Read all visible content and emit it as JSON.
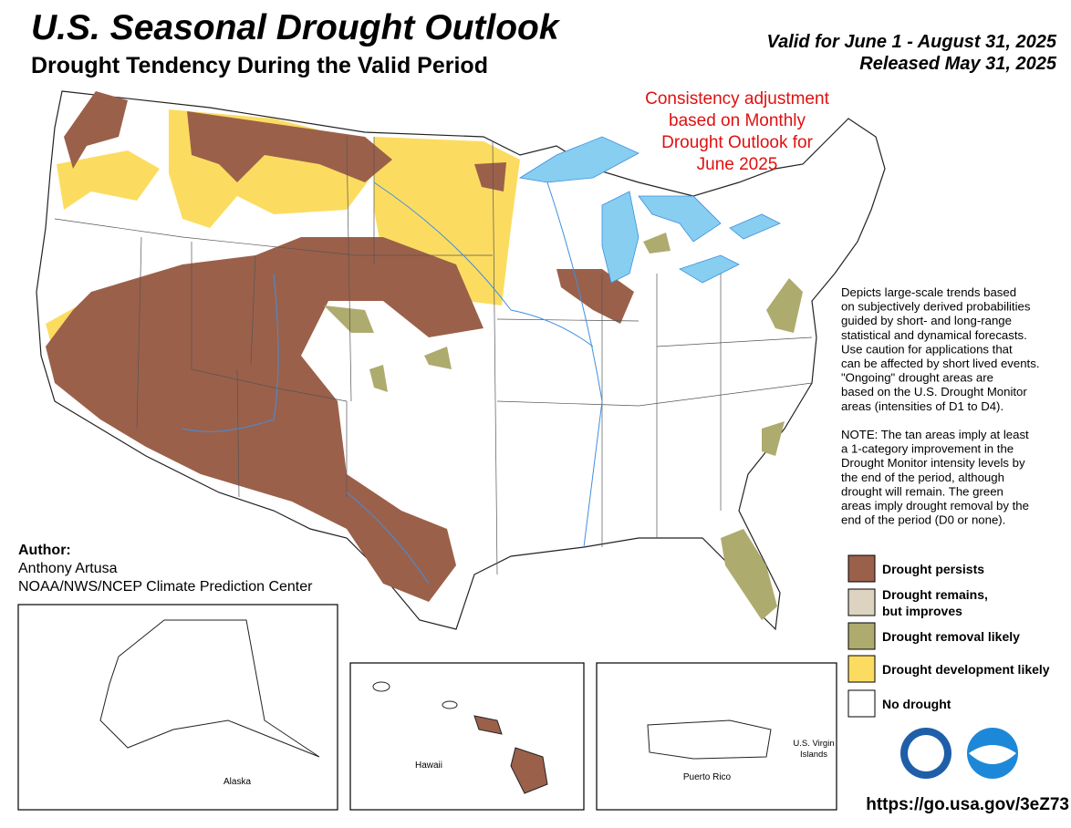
{
  "header": {
    "title": "U.S. Seasonal Drought Outlook",
    "subtitle": "Drought Tendency During the Valid Period",
    "valid": "Valid for June 1 - August 31, 2025",
    "released": "Released May 31, 2025"
  },
  "note": [
    "Consistency adjustment",
    "based on Monthly",
    "Drought Outlook for",
    "June 2025"
  ],
  "description": [
    [
      "Depicts large-scale trends based",
      "on subjectively derived probabilities",
      "guided by short- and long-range",
      "statistical and dynamical forecasts.",
      "Use caution for applications that",
      "can be affected by short lived events.",
      "\"Ongoing\" drought areas are",
      "based on the U.S. Drought Monitor",
      "areas (intensities of D1 to D4)."
    ],
    [
      "NOTE: The tan areas imply at least",
      "a 1-category improvement in the",
      "Drought Monitor intensity levels by",
      "the end of the period, although",
      "drought will remain. The green",
      "areas imply drought removal by the",
      "end of the period (D0 or none)."
    ]
  ],
  "legend": [
    {
      "label": [
        "Drought persists"
      ],
      "color": "#9b604a"
    },
    {
      "label": [
        "Drought remains,",
        "but improves"
      ],
      "color": "#ddd3c0"
    },
    {
      "label": [
        "Drought removal likely"
      ],
      "color": "#aeab6e"
    },
    {
      "label": [
        "Drought development likely"
      ],
      "color": "#fcdc60"
    },
    {
      "label": [
        "No drought"
      ],
      "color": "#ffffff"
    }
  ],
  "author": {
    "heading": "Author:",
    "name": "Anthony Artusa",
    "org": "NOAA/NWS/NCEP Climate Prediction Center"
  },
  "insets": {
    "alaska": "Alaska",
    "hawaii": "Hawaii",
    "puerto_rico": "Puerto Rico",
    "virgin_islands": [
      "U.S. Virgin",
      "Islands"
    ]
  },
  "url": "https://go.usa.gov/3eZ73"
}
